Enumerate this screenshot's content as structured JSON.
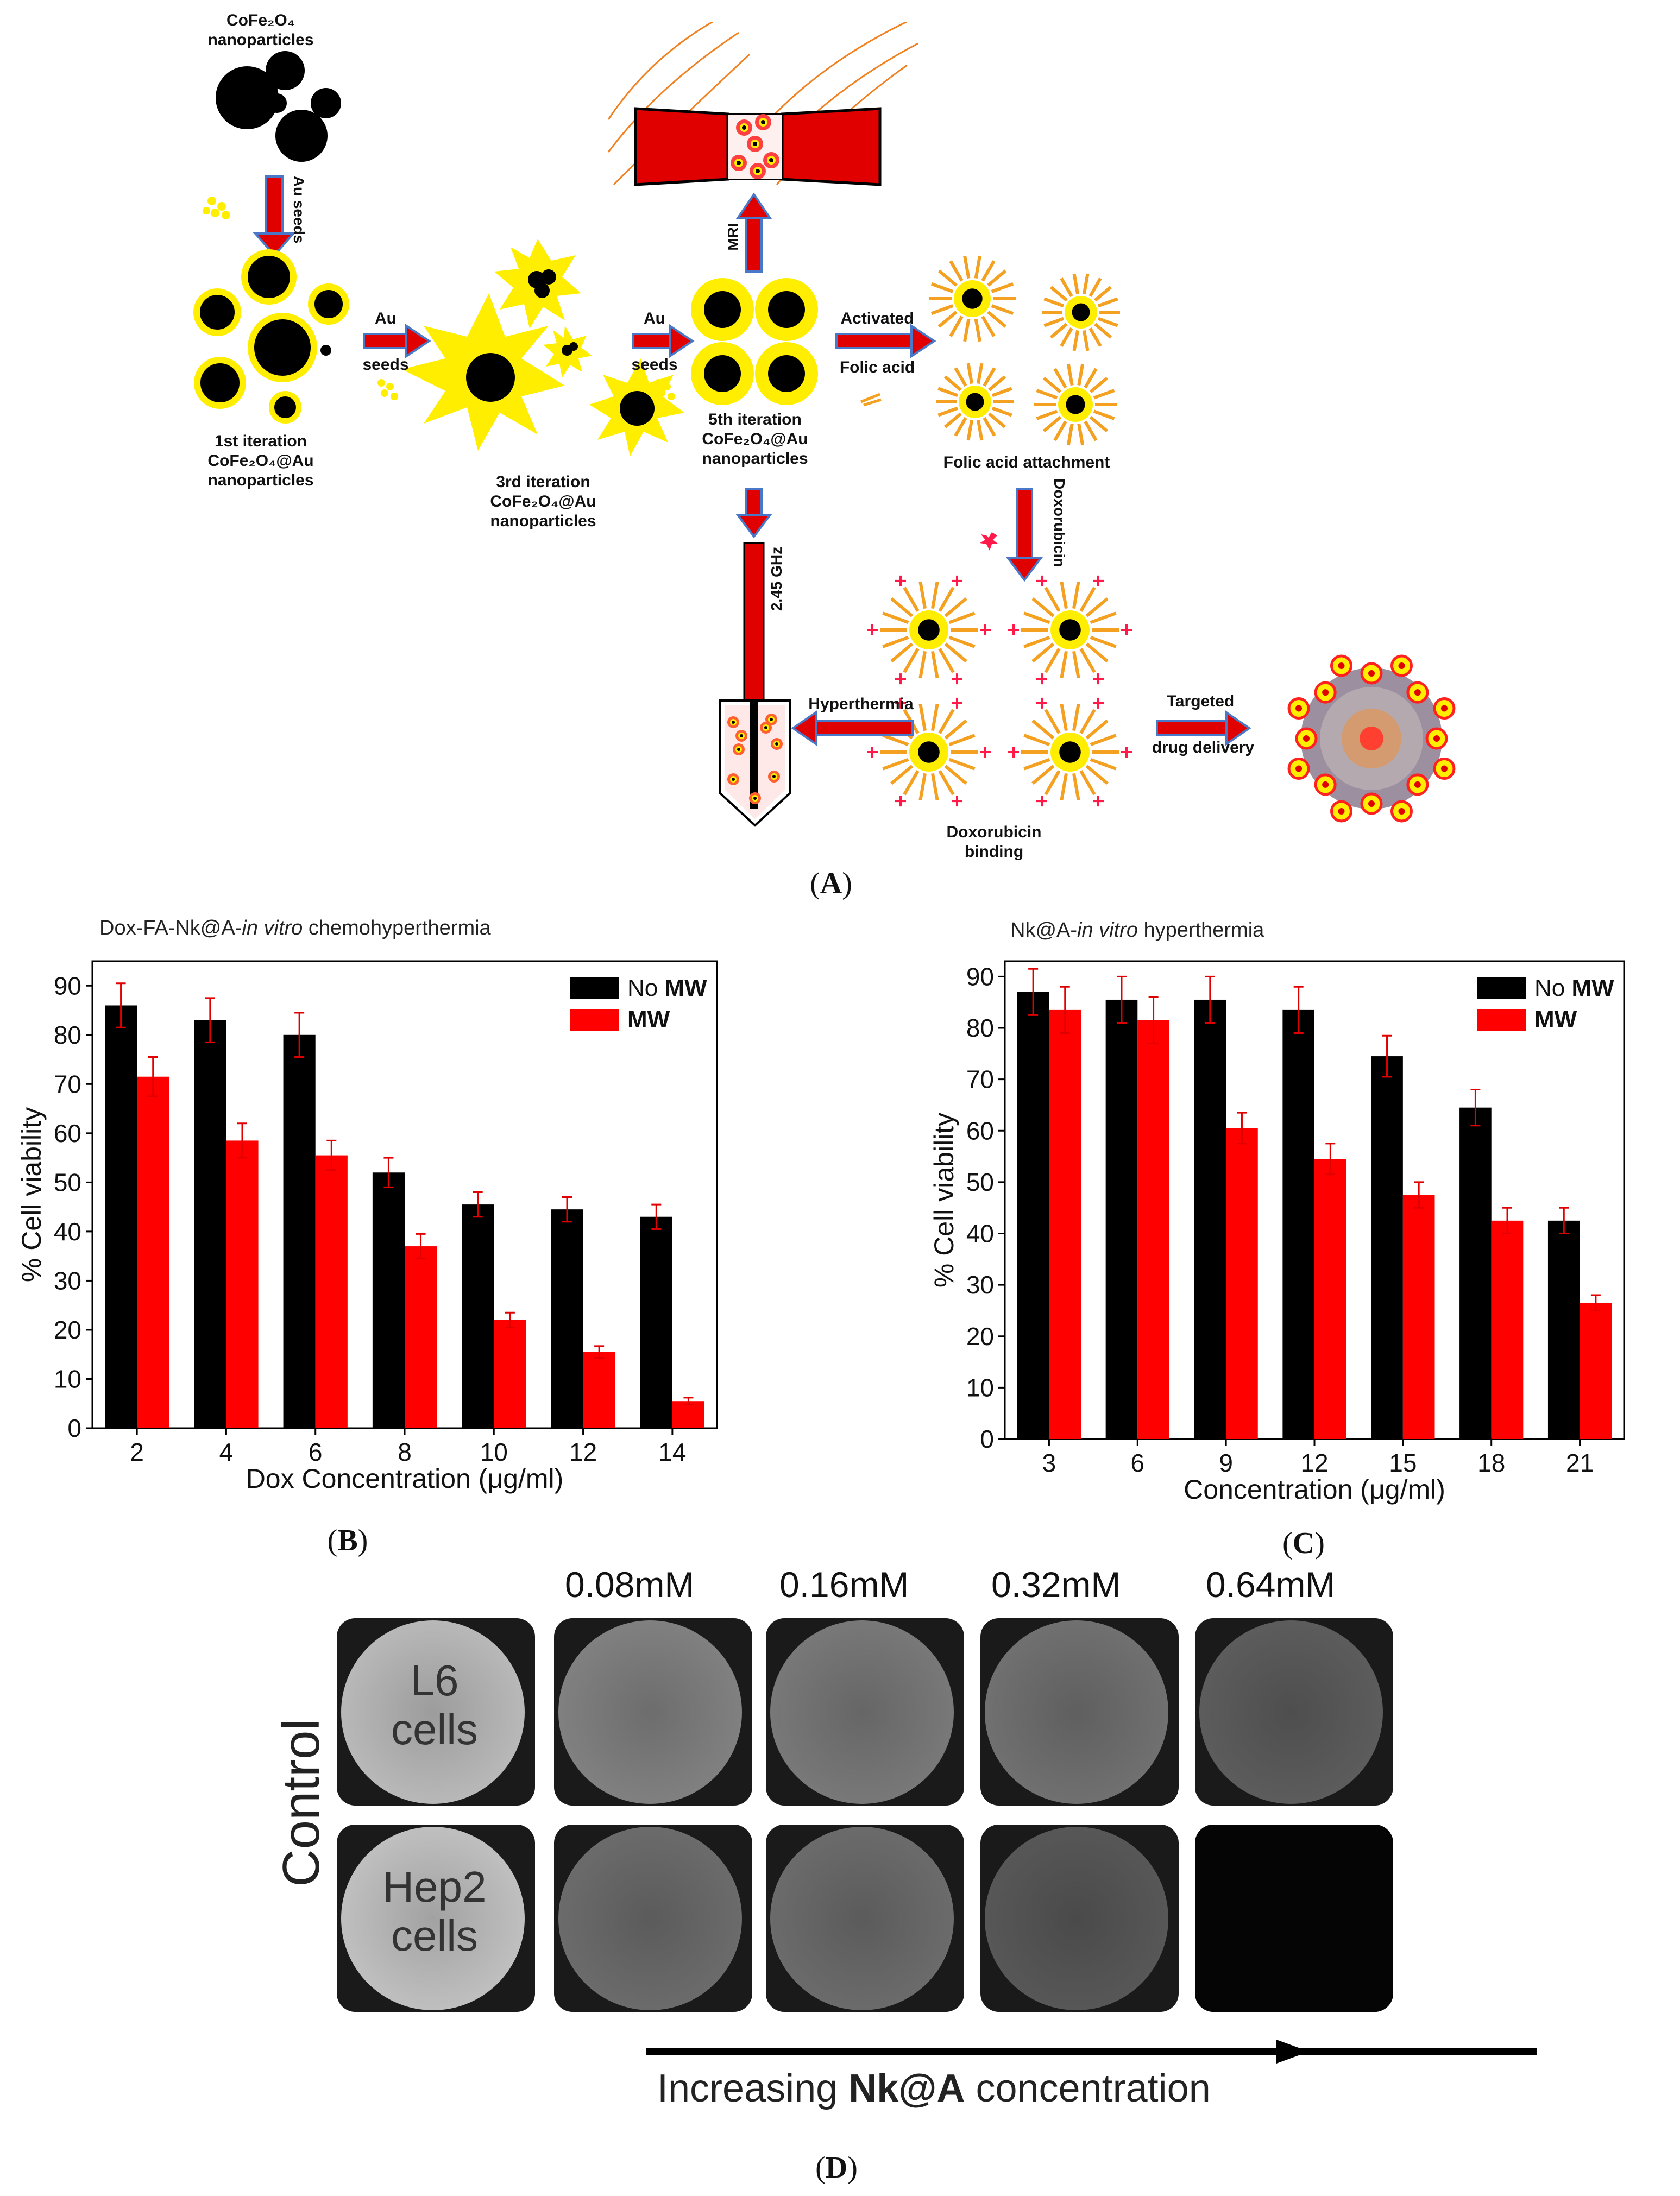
{
  "panel_a": {
    "tag": "A",
    "labels": {
      "np_title": "CoFe₂O₄ nanoparticles",
      "au_seeds_vertical": "Au seeds",
      "iter1": "1st iteration CoFe₂O₄@Au nanoparticles",
      "au1": "Au",
      "seeds1": "seeds",
      "iter3": "3rd iteration CoFe₂O₄@Au nanoparticles",
      "au2": "Au",
      "seeds2": "seeds",
      "iter5": "5th iteration CoFe₂O₄@Au nanoparticles",
      "mri": "MRI",
      "activated": "Activated",
      "folic_acid": "Folic acid",
      "fa_attach": "Folic acid attachment",
      "doxorubicin": "Doxorubicin",
      "ghz": "2.45 GHz",
      "hyperthermia": "Hyperthermia",
      "dox_binding": "Doxorubicin binding",
      "targeted": "Targeted",
      "drug_delivery": "drug delivery"
    }
  },
  "panel_b": {
    "tag": "B"
  },
  "panel_c": {
    "tag": "C"
  },
  "panel_d": {
    "tag": "D",
    "concentrations": [
      "0.08mM",
      "0.16mM",
      "0.32mM",
      "0.64mM"
    ],
    "control_label": "Control",
    "row1_label": "L6 cells",
    "row2_label": "Hep2 cells",
    "axis_prefix": "Increasing ",
    "axis_bold": "Nk@A",
    "axis_suffix": " concentration",
    "row1_levels": [
      0.72,
      0.5,
      0.47,
      0.44,
      0.36
    ],
    "row2_levels": [
      0.75,
      0.42,
      0.42,
      0.34,
      0.02
    ]
  },
  "chart_data": [
    {
      "type": "bar",
      "title": "Dox-FA-Nk@A-in vitro chemohyperthermia",
      "title_plain": "Dox-FA-Nk@A-",
      "title_italic": "in vitro",
      "title_rest": " chemohyperthermia",
      "xlabel": "Dox Concentration (μg/ml)",
      "ylabel": "% Cell viability",
      "categories": [
        "2",
        "4",
        "6",
        "8",
        "10",
        "12",
        "14"
      ],
      "ylim": [
        0,
        95
      ],
      "yticks": [
        0,
        10,
        20,
        30,
        40,
        50,
        60,
        70,
        80,
        90
      ],
      "legend_position": "top-right",
      "series": [
        {
          "name": "No MW",
          "name_plain": "No ",
          "name_bold": "MW",
          "color": "#000000",
          "values": [
            86,
            83,
            80,
            52,
            45.5,
            44.5,
            43
          ],
          "errors": [
            4.5,
            4.5,
            4.5,
            3,
            2.5,
            2.5,
            2.5
          ]
        },
        {
          "name": "MW",
          "name_plain": "",
          "name_bold": "MW",
          "color": "#ff0000",
          "values": [
            71.5,
            58.5,
            55.5,
            37,
            22,
            15.5,
            5.5
          ],
          "errors": [
            4,
            3.5,
            3,
            2.5,
            1.5,
            1.2,
            0.7
          ]
        }
      ]
    },
    {
      "type": "bar",
      "title": "Nk@A-in vitro hyperthermia",
      "title_plain": "Nk@A-",
      "title_italic": "in vitro",
      "title_rest": " hyperthermia",
      "xlabel": "Concentration (μg/ml)",
      "ylabel": "% Cell viability",
      "categories": [
        "3",
        "6",
        "9",
        "12",
        "15",
        "18",
        "21"
      ],
      "ylim": [
        0,
        93
      ],
      "yticks": [
        0,
        10,
        20,
        30,
        40,
        50,
        60,
        70,
        80,
        90
      ],
      "legend_position": "top-right",
      "series": [
        {
          "name": "No MW",
          "name_plain": "No ",
          "name_bold": "MW",
          "color": "#000000",
          "values": [
            87,
            85.5,
            85.5,
            83.5,
            74.5,
            64.5,
            42.5
          ],
          "errors": [
            4.5,
            4.5,
            4.5,
            4.5,
            4,
            3.5,
            2.5
          ]
        },
        {
          "name": "MW",
          "name_plain": "",
          "name_bold": "MW",
          "color": "#ff0000",
          "values": [
            83.5,
            81.5,
            60.5,
            54.5,
            47.5,
            42.5,
            26.5
          ],
          "errors": [
            4.5,
            4.5,
            3,
            3,
            2.5,
            2.5,
            1.5
          ]
        }
      ]
    }
  ]
}
